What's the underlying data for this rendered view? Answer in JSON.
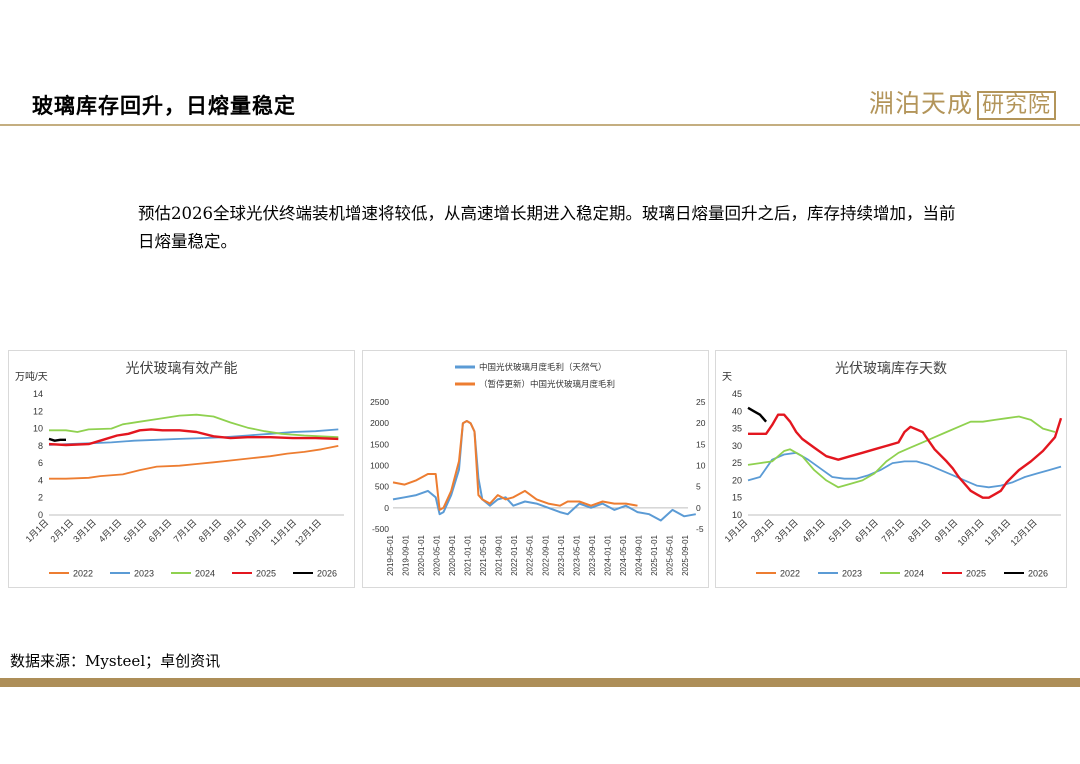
{
  "header": {
    "title": "玻璃库存回升，日熔量稳定",
    "logo_text": "淵泊天成",
    "logo_box_text": "研究院"
  },
  "summary": "预估2026全球光伏终端装机增速将较低，从高速增长期进入稳定期。玻璃日熔量回升之后，库存持续增加，当前日熔量稳定。",
  "footer": {
    "source": "数据来源：Mysteel；卓创资讯"
  },
  "colors": {
    "2022": "#ed7d31",
    "2023": "#5b9bd5",
    "2024": "#8fd14f",
    "2025": "#e3161f",
    "2026": "#000000",
    "gold": "#b3955a"
  },
  "chart_data": [
    {
      "type": "line",
      "title": "光伏玻璃有效产能",
      "ylabel": "万吨/天",
      "ylim": [
        0,
        14
      ],
      "yticks": [
        0,
        2,
        4,
        6,
        8,
        10,
        12,
        14
      ],
      "xlim": [
        1,
        53
      ],
      "x_tick_labels": [
        "1月1日",
        "2月1日",
        "3月1日",
        "4月1日",
        "5月1日",
        "6月1日",
        "7月1日",
        "8月1日",
        "9月1日",
        "10月1日",
        "11月1日",
        "12月1日"
      ],
      "x_tick_weeks": [
        1,
        5.4,
        9.4,
        13.9,
        18.3,
        22.7,
        27.1,
        31.5,
        35.9,
        40.3,
        44.7,
        49.1
      ],
      "legend": "bottom",
      "series": [
        {
          "name": "2022",
          "color": "#ed7d31",
          "x": [
            1,
            4,
            8,
            10,
            14,
            17,
            20,
            24,
            27,
            30,
            33,
            37,
            40,
            43,
            46,
            49,
            52
          ],
          "y": [
            4.2,
            4.2,
            4.3,
            4.5,
            4.7,
            5.2,
            5.6,
            5.7,
            5.9,
            6.1,
            6.3,
            6.6,
            6.8,
            7.1,
            7.3,
            7.6,
            8.0
          ]
        },
        {
          "name": "2023",
          "color": "#5b9bd5",
          "x": [
            1,
            4,
            8,
            12,
            16,
            20,
            24,
            28,
            32,
            36,
            40,
            44,
            48,
            52
          ],
          "y": [
            8.1,
            8.2,
            8.3,
            8.4,
            8.6,
            8.7,
            8.8,
            8.9,
            9.0,
            9.2,
            9.4,
            9.6,
            9.7,
            9.9
          ]
        },
        {
          "name": "2024",
          "color": "#8fd14f",
          "x": [
            1,
            4,
            6,
            8,
            12,
            14,
            17,
            20,
            24,
            27,
            30,
            33,
            36,
            39,
            42,
            46,
            52
          ],
          "y": [
            9.8,
            9.8,
            9.6,
            9.9,
            10.0,
            10.5,
            10.8,
            11.1,
            11.5,
            11.6,
            11.4,
            10.7,
            10.1,
            9.7,
            9.4,
            9.2,
            9.0
          ]
        },
        {
          "name": "2025",
          "color": "#e3161f",
          "x": [
            1,
            4,
            8,
            10,
            13,
            15,
            17,
            19,
            21,
            24,
            27,
            30,
            33,
            36,
            40,
            44,
            48,
            52
          ],
          "y": [
            8.2,
            8.1,
            8.2,
            8.6,
            9.2,
            9.4,
            9.8,
            9.9,
            9.8,
            9.8,
            9.6,
            9.1,
            8.9,
            9.0,
            9.0,
            8.9,
            8.9,
            8.8
          ]
        },
        {
          "name": "2026",
          "color": "#000000",
          "x": [
            1,
            2,
            3,
            4
          ],
          "y": [
            8.8,
            8.6,
            8.7,
            8.7
          ]
        }
      ]
    },
    {
      "type": "line",
      "title": "",
      "ylim_left": [
        -500,
        2500
      ],
      "yticks_left": [
        -500,
        0,
        500,
        1000,
        1500,
        2000,
        2500
      ],
      "ylim_right": [
        -5,
        25
      ],
      "yticks_right": [
        -5,
        0,
        5,
        10,
        15,
        20,
        25
      ],
      "x_tick_labels": [
        "2019-05-01",
        "2019-09-01",
        "2020-01-01",
        "2020-05-01",
        "2020-09-01",
        "2021-01-01",
        "2021-05-01",
        "2021-09-01",
        "2022-01-01",
        "2022-05-01",
        "2022-09-01",
        "2023-01-01",
        "2023-05-01",
        "2023-09-01",
        "2024-01-01",
        "2024-05-01",
        "2024-09-01",
        "2025-01-01",
        "2025-05-01",
        "2025-09-01"
      ],
      "legend": "top",
      "series": [
        {
          "name": "中国光伏玻璃月度毛利（天然气）",
          "color": "#5b9bd5",
          "axis": "left",
          "x": [
            "2019-05-01",
            "2019-08-01",
            "2019-11-01",
            "2020-02-01",
            "2020-04-01",
            "2020-05-01",
            "2020-06-01",
            "2020-08-01",
            "2020-10-01",
            "2020-11-01",
            "2020-12-01",
            "2021-01-01",
            "2021-02-01",
            "2021-03-01",
            "2021-04-01",
            "2021-06-01",
            "2021-08-01",
            "2021-10-01",
            "2021-12-01",
            "2022-03-01",
            "2022-06-01",
            "2022-09-01",
            "2022-12-01",
            "2023-02-01",
            "2023-05-01",
            "2023-08-01",
            "2023-11-01",
            "2024-02-01",
            "2024-05-01",
            "2024-08-01",
            "2024-11-01",
            "2025-02-01",
            "2025-05-01",
            "2025-08-01",
            "2025-11-01"
          ],
          "y": [
            200,
            250,
            300,
            400,
            250,
            -150,
            -100,
            300,
            900,
            2000,
            2050,
            2000,
            1800,
            700,
            200,
            50,
            200,
            250,
            50,
            150,
            100,
            0,
            -100,
            -150,
            100,
            0,
            100,
            -50,
            50,
            -100,
            -150,
            -300,
            -50,
            -200,
            -150
          ]
        },
        {
          "name": "（暂停更新）中国光伏玻璃月度毛利",
          "color": "#ed7d31",
          "axis": "right",
          "x": [
            "2019-05-01",
            "2019-08-01",
            "2019-11-01",
            "2020-02-01",
            "2020-04-01",
            "2020-05-01",
            "2020-06-01",
            "2020-08-01",
            "2020-10-01",
            "2020-11-01",
            "2020-12-01",
            "2021-01-01",
            "2021-02-01",
            "2021-03-01",
            "2021-04-01",
            "2021-06-01",
            "2021-08-01",
            "2021-10-01",
            "2021-12-01",
            "2022-03-01",
            "2022-06-01",
            "2022-09-01",
            "2022-12-01",
            "2023-02-01",
            "2023-05-01",
            "2023-08-01",
            "2023-11-01",
            "2024-02-01",
            "2024-05-01",
            "2024-08-01"
          ],
          "y": [
            6,
            5.5,
            6.5,
            8,
            8,
            -0.5,
            0,
            4,
            11,
            20,
            20.5,
            20,
            18,
            3,
            2,
            1,
            3,
            2,
            2.5,
            4,
            2,
            1,
            0.5,
            1.5,
            1.5,
            0.5,
            1.5,
            1,
            1,
            0.5
          ]
        }
      ]
    },
    {
      "type": "line",
      "title": "光伏玻璃库存天数",
      "ylabel": "天",
      "ylim": [
        10,
        45
      ],
      "yticks": [
        10,
        15,
        20,
        25,
        30,
        35,
        40,
        45
      ],
      "xlim": [
        1,
        53
      ],
      "x_tick_labels": [
        "1月1日",
        "2月1日",
        "3月1日",
        "4月1日",
        "5月1日",
        "6月1日",
        "7月1日",
        "8月1日",
        "9月1日",
        "10月1日",
        "11月1日",
        "12月1日"
      ],
      "x_tick_weeks": [
        1,
        5.4,
        9.4,
        13.9,
        18.3,
        22.7,
        27.1,
        31.5,
        35.9,
        40.3,
        44.7,
        49.1
      ],
      "legend": "bottom",
      "series": [
        {
          "name": "2022",
          "color": "#ed7d31",
          "x": [],
          "y": []
        },
        {
          "name": "2023",
          "color": "#5b9bd5",
          "x": [
            1,
            3,
            5,
            7,
            9,
            11,
            13,
            15,
            17,
            19,
            21,
            23,
            25,
            27,
            29,
            31,
            33,
            35,
            37,
            39,
            41,
            43,
            45,
            47,
            49,
            51,
            53
          ],
          "y": [
            20,
            21,
            26,
            27.5,
            28,
            26,
            23.5,
            21,
            20.5,
            20.5,
            21.5,
            23,
            25,
            25.5,
            25.5,
            24.5,
            23,
            21.5,
            20,
            18.5,
            18,
            18.5,
            19.5,
            21,
            22,
            23,
            24
          ]
        },
        {
          "name": "2024",
          "color": "#8fd14f",
          "x": [
            1,
            3,
            5,
            7,
            8,
            10,
            12,
            14,
            16,
            18,
            20,
            22,
            24,
            26,
            28,
            30,
            32,
            34,
            36,
            38,
            40,
            42,
            44,
            46,
            48,
            50,
            52
          ],
          "y": [
            24.5,
            25,
            25.5,
            28.5,
            29,
            27,
            23,
            20,
            18,
            19,
            20,
            22,
            25.5,
            28,
            29.5,
            31,
            32.5,
            34,
            35.5,
            37,
            37,
            37.5,
            38,
            38.5,
            37.5,
            35,
            34
          ]
        },
        {
          "name": "2025",
          "color": "#e3161f",
          "x": [
            1,
            2,
            4,
            5,
            6,
            7,
            8,
            9,
            10,
            12,
            14,
            16,
            18,
            20,
            22,
            24,
            26,
            27,
            28,
            30,
            32,
            34,
            35,
            36,
            38,
            39,
            40,
            41,
            42,
            43,
            44,
            46,
            48,
            50,
            52,
            53
          ],
          "y": [
            33.5,
            33.5,
            33.5,
            36,
            39,
            39,
            37,
            34,
            32,
            29.5,
            27,
            26,
            27,
            28,
            29,
            30,
            31,
            34,
            35.5,
            34,
            29,
            25.5,
            23.5,
            21,
            17,
            16,
            15,
            15,
            16,
            17,
            19.5,
            23,
            25.5,
            28.5,
            32.5,
            38
          ]
        },
        {
          "name": "2026",
          "color": "#000000",
          "x": [
            1,
            2,
            3,
            4
          ],
          "y": [
            41,
            40,
            39,
            37
          ]
        }
      ]
    }
  ]
}
